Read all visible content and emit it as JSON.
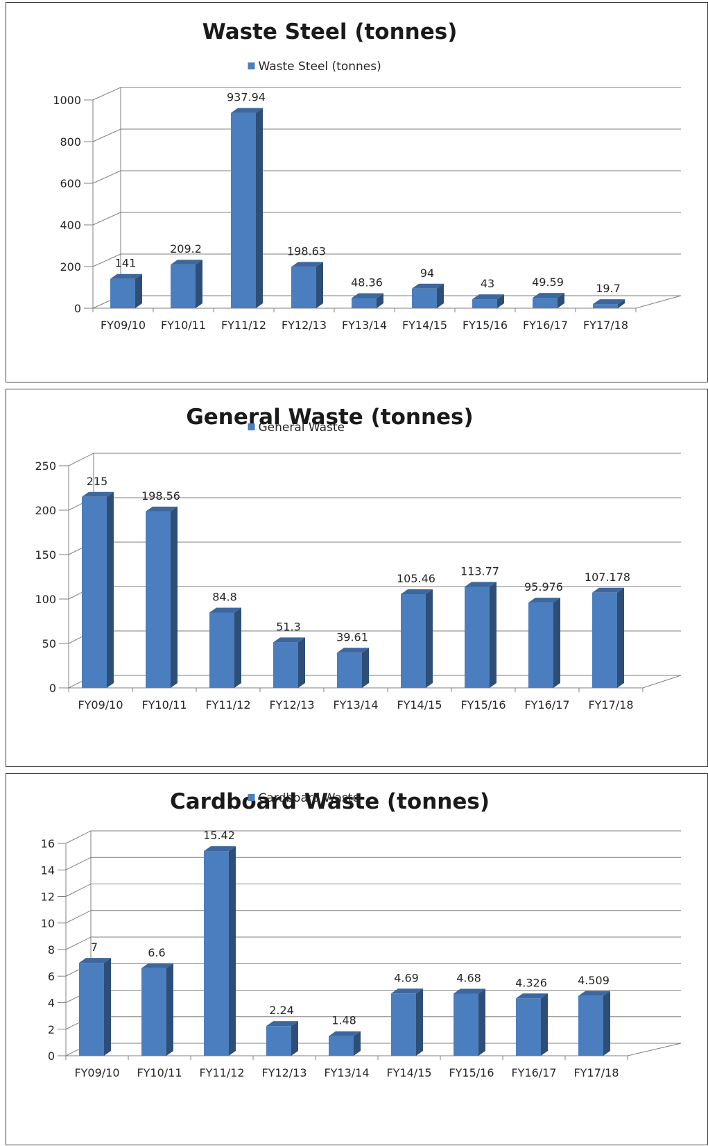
{
  "chart_data": [
    {
      "type": "bar",
      "title": "Waste Steel (tonnes)",
      "legend_position": "top",
      "categories": [
        "FY09/10",
        "FY10/11",
        "FY11/12",
        "FY12/13",
        "FY13/14",
        "FY14/15",
        "FY15/16",
        "FY16/17",
        "FY17/18"
      ],
      "series": [
        {
          "name": "Waste Steel (tonnes)",
          "values": [
            141,
            209.2,
            937.94,
            198.63,
            48.36,
            94,
            43,
            49.59,
            19.7
          ]
        }
      ],
      "data_labels": [
        "141",
        "209.2",
        "937.94",
        "198.63",
        "48.36",
        "94",
        "43",
        "49.59",
        "19.7"
      ],
      "yticks": [
        "0",
        "200",
        "400",
        "600",
        "800",
        "1000"
      ],
      "ylim": [
        0,
        1000
      ],
      "grid": true,
      "bar_color": "#4a7ebf"
    },
    {
      "type": "bar",
      "title": "General Waste (tonnes)",
      "legend_position": "top",
      "categories": [
        "FY09/10",
        "FY10/11",
        "FY11/12",
        "FY12/13",
        "FY13/14",
        "FY14/15",
        "FY15/16",
        "FY16/17",
        "FY17/18"
      ],
      "series": [
        {
          "name": "General Waste",
          "values": [
            215,
            198.56,
            84.8,
            51.3,
            39.61,
            105.46,
            113.77,
            95.976,
            107.178
          ]
        }
      ],
      "data_labels": [
        "215",
        "198.56",
        "84.8",
        "51.3",
        "39.61",
        "105.46",
        "113.77",
        "95.976",
        "107.178"
      ],
      "yticks": [
        "0",
        "50",
        "100",
        "150",
        "200",
        "250"
      ],
      "ylim": [
        0,
        250
      ],
      "grid": true,
      "bar_color": "#4a7ebf"
    },
    {
      "type": "bar",
      "title": "Cardboard Waste (tonnes)",
      "legend_position": "top",
      "categories": [
        "FY09/10",
        "FY10/11",
        "FY11/12",
        "FY12/13",
        "FY13/14",
        "FY14/15",
        "FY15/16",
        "FY16/17",
        "FY17/18"
      ],
      "series": [
        {
          "name": "Cardboard Waste",
          "values": [
            7,
            6.6,
            15.42,
            2.24,
            1.48,
            4.69,
            4.68,
            4.326,
            4.509
          ]
        }
      ],
      "data_labels": [
        "7",
        "6.6",
        "15.42",
        "2.24",
        "1.48",
        "4.69",
        "4.68",
        "4.326",
        "4.509"
      ],
      "yticks": [
        "0",
        "2",
        "4",
        "6",
        "8",
        "10",
        "12",
        "14",
        "16"
      ],
      "ylim": [
        0,
        16
      ],
      "grid": true,
      "bar_color": "#4a7ebf"
    }
  ]
}
